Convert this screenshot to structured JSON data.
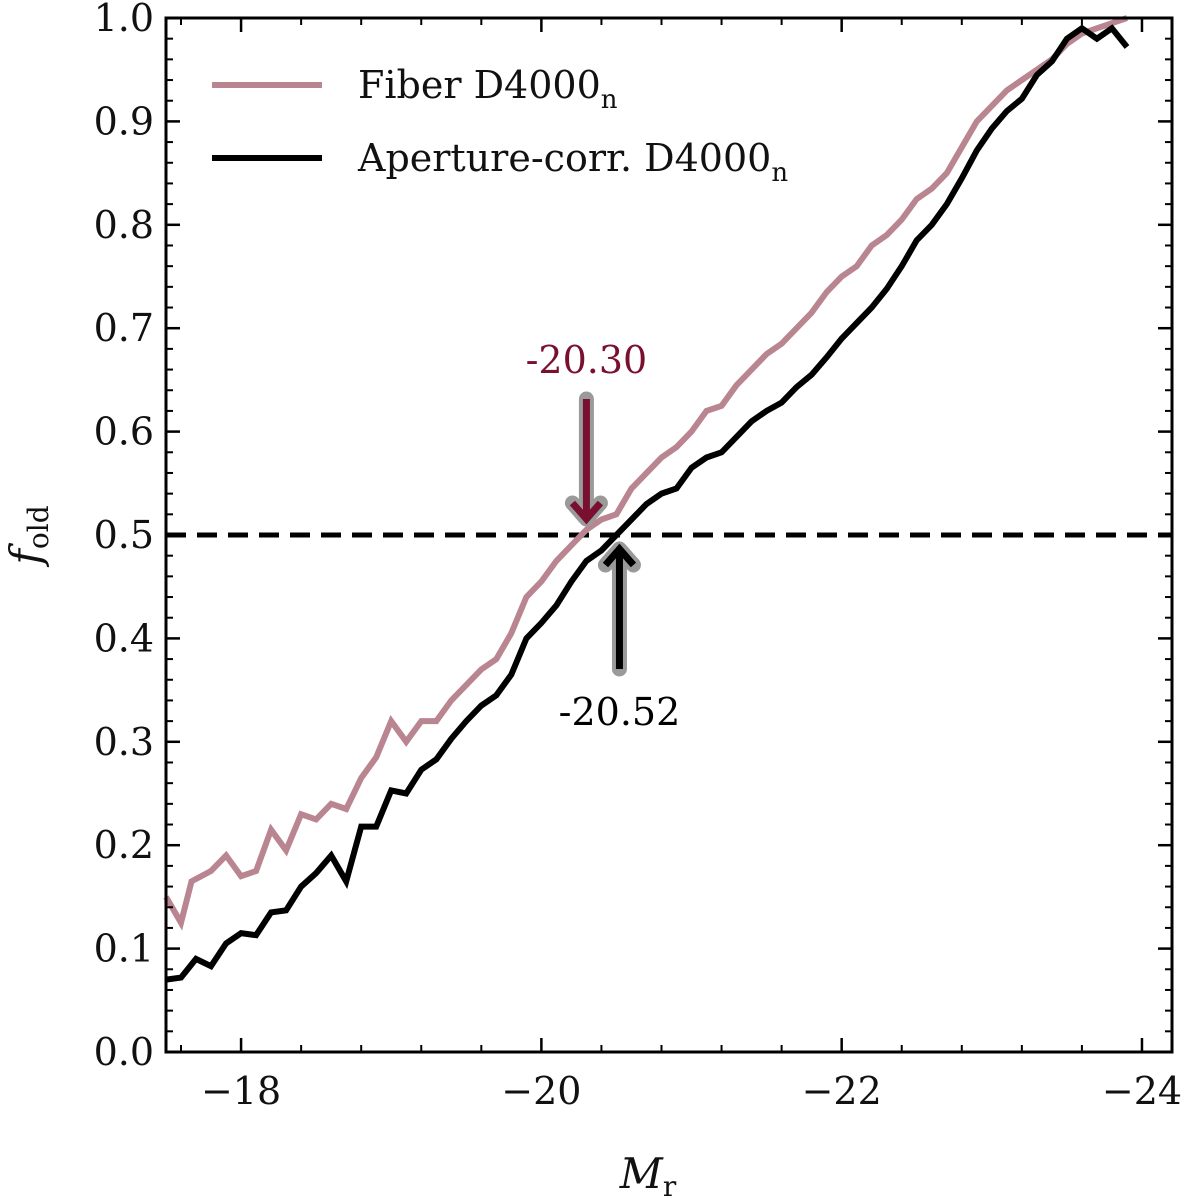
{
  "chart_data": {
    "type": "line",
    "xlabel": "M",
    "xlabel_sub": "r",
    "ylabel": "f",
    "ylabel_sub": "old",
    "xlim": [
      -17.5,
      -24.2
    ],
    "ylim": [
      0.0,
      1.0
    ],
    "x_ticks": [
      -18,
      -20,
      -22,
      -24
    ],
    "x_tick_labels": [
      "−18",
      "−20",
      "−22",
      "−24"
    ],
    "y_ticks": [
      0.0,
      0.1,
      0.2,
      0.3,
      0.4,
      0.5,
      0.6,
      0.7,
      0.8,
      0.9,
      1.0
    ],
    "y_tick_labels": [
      "0.0",
      "0.1",
      "0.2",
      "0.3",
      "0.4",
      "0.5",
      "0.6",
      "0.7",
      "0.8",
      "0.9",
      "1.0"
    ],
    "reference_line": {
      "y": 0.5,
      "style": "dashed",
      "color": "#000000"
    },
    "legend": {
      "position": "top-left"
    },
    "series": [
      {
        "name": "Fiber D4000",
        "name_sub": "n",
        "color": "#b98590",
        "x": [
          -17.5,
          -17.6,
          -17.67,
          -17.8,
          -17.9,
          -18.0,
          -18.1,
          -18.2,
          -18.3,
          -18.4,
          -18.5,
          -18.6,
          -18.7,
          -18.8,
          -18.9,
          -19.0,
          -19.1,
          -19.2,
          -19.3,
          -19.4,
          -19.5,
          -19.6,
          -19.7,
          -19.8,
          -19.9,
          -20.0,
          -20.1,
          -20.2,
          -20.3,
          -20.4,
          -20.5,
          -20.6,
          -20.7,
          -20.8,
          -20.9,
          -21.0,
          -21.1,
          -21.2,
          -21.3,
          -21.4,
          -21.5,
          -21.6,
          -21.7,
          -21.8,
          -21.9,
          -22.0,
          -22.1,
          -22.2,
          -22.3,
          -22.4,
          -22.5,
          -22.6,
          -22.7,
          -22.8,
          -22.9,
          -23.0,
          -23.1,
          -23.2,
          -23.3,
          -23.4,
          -23.5,
          -23.6,
          -23.7,
          -23.8,
          -23.9
        ],
        "values": [
          0.15,
          0.125,
          0.165,
          0.175,
          0.19,
          0.17,
          0.175,
          0.215,
          0.195,
          0.23,
          0.225,
          0.24,
          0.235,
          0.265,
          0.285,
          0.32,
          0.3,
          0.32,
          0.32,
          0.34,
          0.355,
          0.37,
          0.38,
          0.405,
          0.44,
          0.455,
          0.475,
          0.49,
          0.505,
          0.515,
          0.52,
          0.545,
          0.56,
          0.575,
          0.585,
          0.6,
          0.62,
          0.625,
          0.645,
          0.66,
          0.675,
          0.685,
          0.7,
          0.715,
          0.735,
          0.75,
          0.76,
          0.78,
          0.79,
          0.805,
          0.825,
          0.835,
          0.85,
          0.875,
          0.9,
          0.915,
          0.93,
          0.94,
          0.95,
          0.96,
          0.975,
          0.985,
          0.99,
          0.995,
          1.0
        ]
      },
      {
        "name": "Aperture-corr. D4000",
        "name_sub": "n",
        "color": "#000000",
        "x": [
          -17.5,
          -17.6,
          -17.7,
          -17.8,
          -17.9,
          -18.0,
          -18.1,
          -18.2,
          -18.3,
          -18.4,
          -18.5,
          -18.6,
          -18.7,
          -18.8,
          -18.9,
          -19.0,
          -19.1,
          -19.2,
          -19.3,
          -19.4,
          -19.5,
          -19.6,
          -19.7,
          -19.8,
          -19.9,
          -20.0,
          -20.1,
          -20.2,
          -20.3,
          -20.4,
          -20.5,
          -20.6,
          -20.7,
          -20.8,
          -20.9,
          -21.0,
          -21.1,
          -21.2,
          -21.3,
          -21.4,
          -21.5,
          -21.6,
          -21.7,
          -21.8,
          -21.9,
          -22.0,
          -22.1,
          -22.2,
          -22.3,
          -22.4,
          -22.5,
          -22.6,
          -22.7,
          -22.8,
          -22.9,
          -23.0,
          -23.1,
          -23.2,
          -23.3,
          -23.4,
          -23.5,
          -23.6,
          -23.7,
          -23.8,
          -23.9
        ],
        "values": [
          0.07,
          0.072,
          0.09,
          0.083,
          0.105,
          0.115,
          0.113,
          0.135,
          0.137,
          0.16,
          0.173,
          0.19,
          0.165,
          0.218,
          0.218,
          0.253,
          0.25,
          0.273,
          0.283,
          0.303,
          0.32,
          0.335,
          0.345,
          0.365,
          0.4,
          0.415,
          0.432,
          0.455,
          0.475,
          0.485,
          0.5,
          0.515,
          0.53,
          0.54,
          0.545,
          0.565,
          0.575,
          0.58,
          0.595,
          0.61,
          0.62,
          0.628,
          0.643,
          0.655,
          0.672,
          0.69,
          0.705,
          0.72,
          0.738,
          0.76,
          0.785,
          0.8,
          0.82,
          0.845,
          0.872,
          0.893,
          0.91,
          0.922,
          0.945,
          0.958,
          0.98,
          0.99,
          0.98,
          0.99,
          0.972
        ]
      }
    ],
    "annotations": [
      {
        "text": "-20.30",
        "x": -20.3,
        "y": 0.5,
        "direction": "down",
        "color": "#7a1030"
      },
      {
        "text": "-20.52",
        "x": -20.52,
        "y": 0.5,
        "direction": "up",
        "color": "#000000"
      }
    ]
  }
}
